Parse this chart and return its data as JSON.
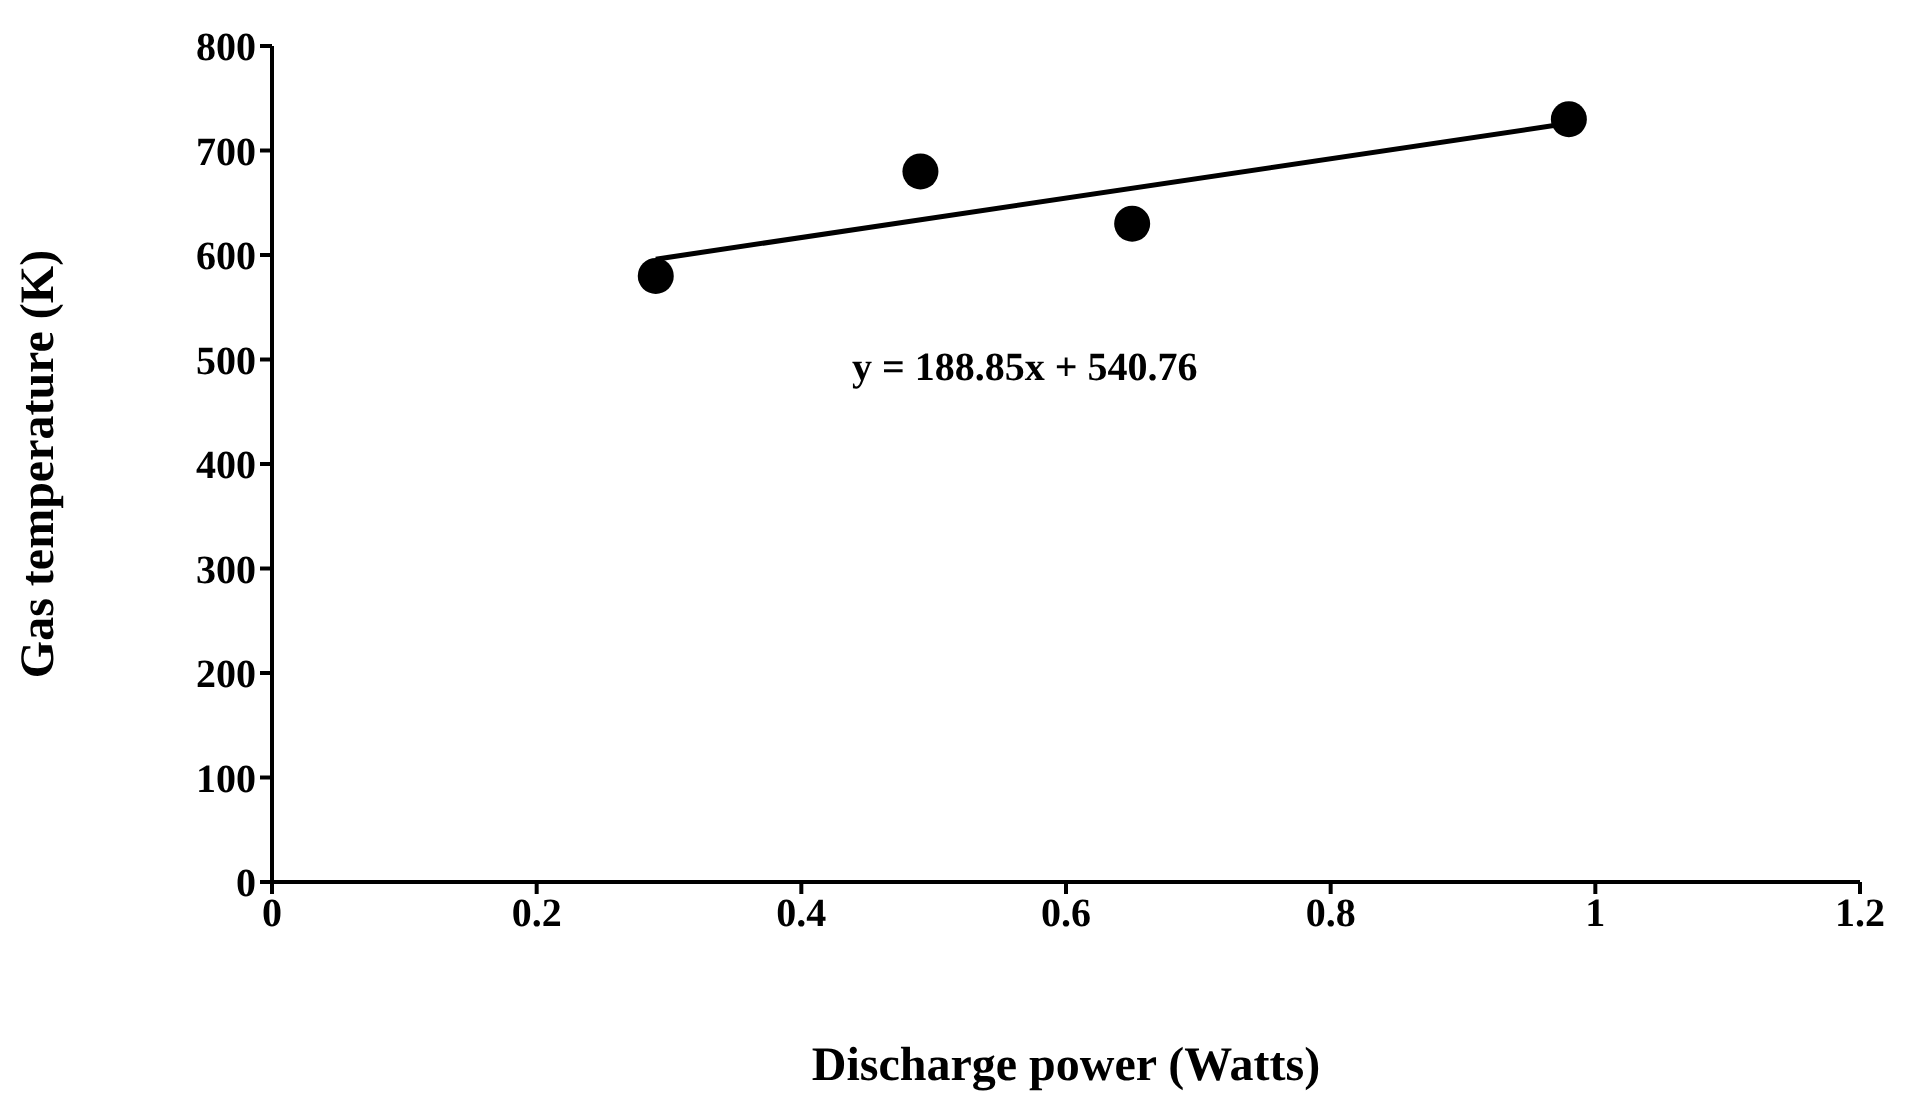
{
  "chart_data": {
    "type": "scatter",
    "xlabel": "Discharge power (Watts)",
    "ylabel": "Gas temperature (K)",
    "annotations": [
      "y = 188.85x + 540.76"
    ],
    "xlim": [
      0,
      1.2
    ],
    "ylim": [
      0,
      800
    ],
    "xticks": [
      0,
      0.2,
      0.4,
      0.6,
      0.8,
      1,
      1.2
    ],
    "yticks": [
      0,
      100,
      200,
      300,
      400,
      500,
      600,
      700,
      800
    ],
    "series": [
      {
        "color": "#000000",
        "marker": "circle",
        "x": [
          0.29,
          0.49,
          0.65,
          0.98
        ],
        "values": [
          580,
          680,
          630,
          730
        ]
      },
      {
        "type": "line",
        "color": "#000000",
        "marker": "none",
        "x": [
          0.29,
          0.98
        ],
        "values": [
          596,
          726
        ]
      }
    ]
  }
}
